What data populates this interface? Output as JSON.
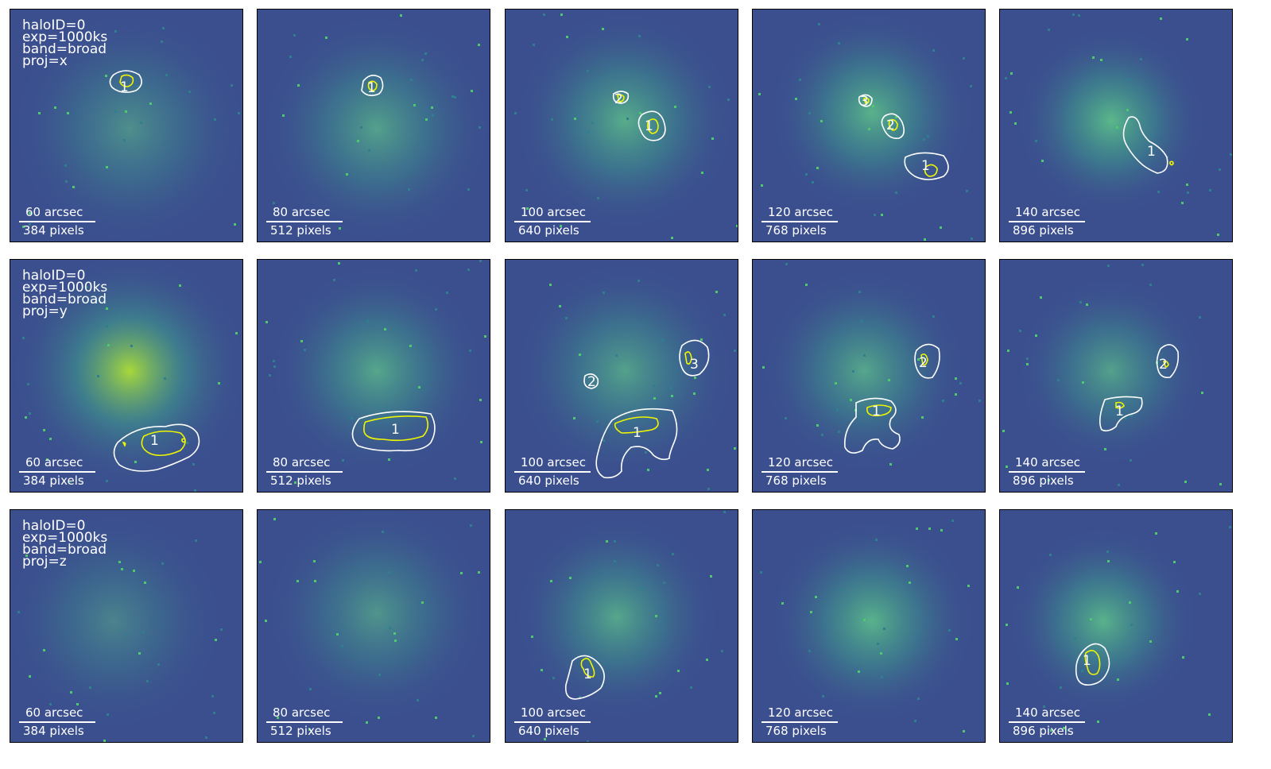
{
  "rows": [
    {
      "info": [
        "haloID=0",
        "exp=1000ks",
        "band=broad",
        "proj=x"
      ],
      "panels": [
        {
          "arcsec": "60 arcsec",
          "pixels": "384 pixels",
          "labels": [
            "1"
          ]
        },
        {
          "arcsec": "80 arcsec",
          "pixels": "512 pixels",
          "labels": [
            "1"
          ]
        },
        {
          "arcsec": "100 arcsec",
          "pixels": "640 pixels",
          "labels": [
            "2",
            "1"
          ]
        },
        {
          "arcsec": "120 arcsec",
          "pixels": "768 pixels",
          "labels": [
            "3",
            "2",
            "1"
          ]
        },
        {
          "arcsec": "140 arcsec",
          "pixels": "896 pixels",
          "labels": [
            "1"
          ]
        }
      ]
    },
    {
      "info": [
        "haloID=0",
        "exp=1000ks",
        "band=broad",
        "proj=y"
      ],
      "panels": [
        {
          "arcsec": "60 arcsec",
          "pixels": "384 pixels",
          "labels": [
            "1"
          ]
        },
        {
          "arcsec": "80 arcsec",
          "pixels": "512 pixels",
          "labels": [
            "1"
          ]
        },
        {
          "arcsec": "100 arcsec",
          "pixels": "640 pixels",
          "labels": [
            "2",
            "3",
            "1"
          ]
        },
        {
          "arcsec": "120 arcsec",
          "pixels": "768 pixels",
          "labels": [
            "2",
            "1"
          ]
        },
        {
          "arcsec": "140 arcsec",
          "pixels": "896 pixels",
          "labels": [
            "2",
            "1"
          ]
        }
      ]
    },
    {
      "info": [
        "haloID=0",
        "exp=1000ks",
        "band=broad",
        "proj=z"
      ],
      "panels": [
        {
          "arcsec": "60 arcsec",
          "pixels": "384 pixels",
          "labels": []
        },
        {
          "arcsec": "80 arcsec",
          "pixels": "512 pixels",
          "labels": []
        },
        {
          "arcsec": "100 arcsec",
          "pixels": "640 pixels",
          "labels": [
            "1"
          ]
        },
        {
          "arcsec": "120 arcsec",
          "pixels": "768 pixels",
          "labels": []
        },
        {
          "arcsec": "140 arcsec",
          "pixels": "896 pixels",
          "labels": [
            "1"
          ]
        }
      ]
    }
  ],
  "colors": {
    "contour_outer": "#ffffff",
    "contour_inner": "#f0f500",
    "bg_dark": "#3b4f8f",
    "core": "#5fc48a"
  }
}
